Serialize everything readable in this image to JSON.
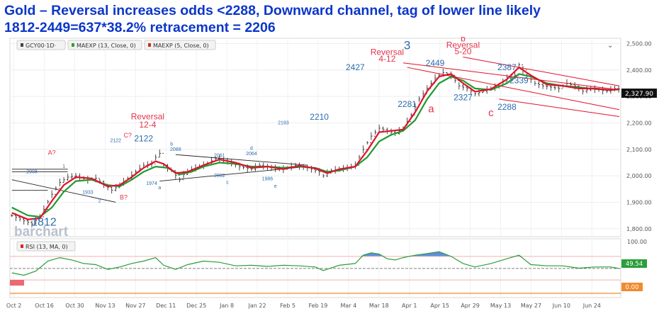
{
  "title_line1": "Gold – Reversal increases odds <2288, Downward channel, tag of lower line likely",
  "title_line2": "1812-2449=637*38.2% retracement = 2206",
  "legend": [
    {
      "label": "GCY00·1D·",
      "color": "#444444"
    },
    {
      "label": "MAEXP (13, Close, 0)",
      "color": "#2ca02c"
    },
    {
      "label": "MAEXP (5, Close, 0)",
      "color": "#d62728"
    }
  ],
  "rsi_legend": "RSI (13, MA, 0)",
  "watermark": "barchart",
  "colors": {
    "ma13": "#1f9a2e",
    "ma5": "#e0112b",
    "price": "#333333",
    "rsi": "#2a9e3a",
    "rsi_fill": "#3a6fd8",
    "channel": "#e0112b",
    "blue_text": "#2b6cb0",
    "red_text": "#e3344c"
  },
  "chart_data": {
    "type": "line",
    "title": "Gold – Reversal increases odds <2288, Downward channel, tag of lower line likely",
    "subtitle": "1812-2449=637*38.2% retracement = 2206",
    "ylim": [
      1770,
      2520
    ],
    "y_ticks": [
      "2,500.00",
      "2,400.00",
      "2,300.00",
      "2,200.00",
      "2,100.00",
      "2,000.00",
      "1,900.00",
      "1,800.00"
    ],
    "y_tick_values": [
      2500,
      2400,
      2300,
      2200,
      2100,
      2000,
      1900,
      1800
    ],
    "x_ticks": [
      "Oct 2",
      "Oct 16",
      "Oct 30",
      "Nov 13",
      "Nov 27",
      "Dec 11",
      "Dec 25",
      "Jan 8",
      "Jan 22",
      "Feb 5",
      "Feb 19",
      "Mar 4",
      "Mar 18",
      "Apr 1",
      "Apr 15",
      "Apr 29",
      "May 13",
      "May 27",
      "Jun 10",
      "Jun 24"
    ],
    "last_price": "2,327.90",
    "close_path": [
      [
        0,
        1850
      ],
      [
        3,
        1830
      ],
      [
        5,
        1818
      ],
      [
        7,
        1845
      ],
      [
        10,
        1930
      ],
      [
        12,
        1975
      ],
      [
        14,
        1995
      ],
      [
        16,
        2000
      ],
      [
        19,
        1985
      ],
      [
        21,
        1990
      ],
      [
        23,
        1968
      ],
      [
        25,
        1945
      ],
      [
        27,
        1965
      ],
      [
        29,
        1990
      ],
      [
        31,
        2015
      ],
      [
        33,
        2040
      ],
      [
        35,
        2045
      ],
      [
        36,
        2070
      ],
      [
        37,
        2085
      ],
      [
        38,
        2040
      ],
      [
        40,
        2020
      ],
      [
        42,
        1985
      ],
      [
        43,
        2005
      ],
      [
        45,
        2025
      ],
      [
        48,
        2040
      ],
      [
        51,
        2065
      ],
      [
        54,
        2055
      ],
      [
        57,
        2035
      ],
      [
        60,
        2025
      ],
      [
        62,
        2040
      ],
      [
        65,
        2030
      ],
      [
        68,
        2025
      ],
      [
        71,
        2040
      ],
      [
        74,
        2030
      ],
      [
        77,
        2015
      ],
      [
        78,
        2000
      ],
      [
        80,
        2020
      ],
      [
        84,
        2030
      ],
      [
        86,
        2040
      ],
      [
        88,
        2100
      ],
      [
        90,
        2150
      ],
      [
        92,
        2180
      ],
      [
        94,
        2170
      ],
      [
        96,
        2160
      ],
      [
        98,
        2180
      ],
      [
        100,
        2230
      ],
      [
        102,
        2290
      ],
      [
        104,
        2330
      ],
      [
        106,
        2370
      ],
      [
        108,
        2390
      ],
      [
        110,
        2380
      ],
      [
        112,
        2340
      ],
      [
        114,
        2330
      ],
      [
        116,
        2310
      ],
      [
        118,
        2320
      ],
      [
        120,
        2330
      ],
      [
        122,
        2340
      ],
      [
        124,
        2370
      ],
      [
        126,
        2380
      ],
      [
        127,
        2420
      ],
      [
        129,
        2380
      ],
      [
        131,
        2350
      ],
      [
        133,
        2340
      ],
      [
        135,
        2335
      ],
      [
        137,
        2330
      ],
      [
        139,
        2350
      ],
      [
        141,
        2340
      ],
      [
        143,
        2320
      ],
      [
        145,
        2330
      ],
      [
        147,
        2325
      ],
      [
        149,
        2320
      ],
      [
        151,
        2330
      ],
      [
        152,
        2327.9
      ]
    ],
    "series": [
      {
        "name": "MAEXP (13, Close, 0)",
        "values": [
          [
            0,
            1880
          ],
          [
            4,
            1850
          ],
          [
            7,
            1845
          ],
          [
            10,
            1880
          ],
          [
            13,
            1940
          ],
          [
            16,
            1980
          ],
          [
            20,
            1985
          ],
          [
            24,
            1965
          ],
          [
            27,
            1960
          ],
          [
            30,
            1985
          ],
          [
            33,
            2015
          ],
          [
            36,
            2035
          ],
          [
            39,
            2030
          ],
          [
            42,
            2005
          ],
          [
            45,
            2015
          ],
          [
            48,
            2035
          ],
          [
            52,
            2050
          ],
          [
            56,
            2045
          ],
          [
            60,
            2035
          ],
          [
            64,
            2035
          ],
          [
            68,
            2030
          ],
          [
            72,
            2035
          ],
          [
            76,
            2030
          ],
          [
            79,
            2015
          ],
          [
            82,
            2020
          ],
          [
            86,
            2035
          ],
          [
            89,
            2070
          ],
          [
            92,
            2130
          ],
          [
            95,
            2155
          ],
          [
            98,
            2170
          ],
          [
            101,
            2210
          ],
          [
            104,
            2290
          ],
          [
            107,
            2350
          ],
          [
            110,
            2375
          ],
          [
            113,
            2360
          ],
          [
            116,
            2330
          ],
          [
            120,
            2325
          ],
          [
            124,
            2350
          ],
          [
            127,
            2385
          ],
          [
            130,
            2375
          ],
          [
            134,
            2350
          ],
          [
            138,
            2340
          ],
          [
            142,
            2335
          ],
          [
            146,
            2328
          ],
          [
            150,
            2325
          ],
          [
            152,
            2326
          ]
        ]
      },
      {
        "name": "MAEXP (5, Close, 0)",
        "values": [
          [
            0,
            1860
          ],
          [
            4,
            1835
          ],
          [
            7,
            1840
          ],
          [
            10,
            1905
          ],
          [
            13,
            1965
          ],
          [
            16,
            1995
          ],
          [
            20,
            1990
          ],
          [
            24,
            1960
          ],
          [
            27,
            1965
          ],
          [
            30,
            1995
          ],
          [
            33,
            2030
          ],
          [
            36,
            2055
          ],
          [
            38,
            2045
          ],
          [
            41,
            2010
          ],
          [
            44,
            2015
          ],
          [
            48,
            2040
          ],
          [
            52,
            2062
          ],
          [
            56,
            2050
          ],
          [
            60,
            2030
          ],
          [
            64,
            2035
          ],
          [
            68,
            2025
          ],
          [
            72,
            2038
          ],
          [
            76,
            2028
          ],
          [
            79,
            2010
          ],
          [
            82,
            2025
          ],
          [
            86,
            2035
          ],
          [
            89,
            2095
          ],
          [
            92,
            2165
          ],
          [
            95,
            2170
          ],
          [
            98,
            2175
          ],
          [
            101,
            2240
          ],
          [
            104,
            2320
          ],
          [
            107,
            2375
          ],
          [
            110,
            2385
          ],
          [
            113,
            2350
          ],
          [
            116,
            2318
          ],
          [
            120,
            2328
          ],
          [
            124,
            2365
          ],
          [
            127,
            2410
          ],
          [
            130,
            2380
          ],
          [
            134,
            2345
          ],
          [
            138,
            2340
          ],
          [
            142,
            2330
          ],
          [
            146,
            2330
          ],
          [
            150,
            2324
          ],
          [
            152,
            2328
          ]
        ]
      }
    ],
    "rsi": {
      "ylim": [
        0,
        100
      ],
      "tick": "100.00",
      "level_line": 49.54,
      "level_label": "49.54",
      "zero_label": "0.00",
      "values": [
        [
          0,
          42
        ],
        [
          3,
          38
        ],
        [
          6,
          45
        ],
        [
          9,
          62
        ],
        [
          12,
          68
        ],
        [
          15,
          64
        ],
        [
          18,
          58
        ],
        [
          21,
          56
        ],
        [
          24,
          48
        ],
        [
          27,
          52
        ],
        [
          30,
          58
        ],
        [
          33,
          62
        ],
        [
          36,
          68
        ],
        [
          38,
          55
        ],
        [
          41,
          48
        ],
        [
          44,
          56
        ],
        [
          48,
          62
        ],
        [
          52,
          60
        ],
        [
          56,
          54
        ],
        [
          60,
          55
        ],
        [
          64,
          53
        ],
        [
          68,
          55
        ],
        [
          72,
          54
        ],
        [
          76,
          52
        ],
        [
          78,
          46
        ],
        [
          82,
          55
        ],
        [
          86,
          58
        ],
        [
          88,
          72
        ],
        [
          90,
          76
        ],
        [
          92,
          74
        ],
        [
          94,
          66
        ],
        [
          96,
          64
        ],
        [
          98,
          68
        ],
        [
          101,
          72
        ],
        [
          104,
          75
        ],
        [
          107,
          78
        ],
        [
          110,
          70
        ],
        [
          113,
          58
        ],
        [
          116,
          52
        ],
        [
          120,
          58
        ],
        [
          124,
          66
        ],
        [
          127,
          72
        ],
        [
          130,
          56
        ],
        [
          134,
          54
        ],
        [
          138,
          54
        ],
        [
          142,
          50
        ],
        [
          146,
          52
        ],
        [
          150,
          52
        ],
        [
          152,
          49.54
        ]
      ]
    },
    "labels_blue": [
      {
        "text": "1812",
        "x": 8,
        "y": 1812
      },
      {
        "text": "2008",
        "x": 5,
        "y": 2010
      },
      {
        "text": "1",
        "x": 13,
        "y": 2030
      },
      {
        "text": "1933",
        "x": 19,
        "y": 1932
      },
      {
        "text": "2",
        "x": 22,
        "y": 1900
      },
      {
        "text": "2122",
        "x": 26,
        "y": 2128
      },
      {
        "text": "2122",
        "x": 33,
        "y": 2130
      },
      {
        "text": "1974",
        "x": 35,
        "y": 1965
      },
      {
        "text": "a",
        "x": 37,
        "y": 1950
      },
      {
        "text": "b",
        "x": 40,
        "y": 2114
      },
      {
        "text": "2088",
        "x": 41,
        "y": 2094
      },
      {
        "text": "2061",
        "x": 52,
        "y": 2072
      },
      {
        "text": "2002",
        "x": 52,
        "y": 1995
      },
      {
        "text": "c",
        "x": 54,
        "y": 1970
      },
      {
        "text": "d",
        "x": 60,
        "y": 2098
      },
      {
        "text": "2064",
        "x": 60,
        "y": 2078
      },
      {
        "text": "1986",
        "x": 64,
        "y": 1983
      },
      {
        "text": "e",
        "x": 66,
        "y": 1955
      },
      {
        "text": "2193",
        "x": 68,
        "y": 2195
      },
      {
        "text": "2210",
        "x": 77,
        "y": 2212
      },
      {
        "text": "2427",
        "x": 86,
        "y": 2400
      },
      {
        "text": "3",
        "x": 99,
        "y": 2478
      },
      {
        "text": "2281",
        "x": 99,
        "y": 2260
      },
      {
        "text": "2449",
        "x": 106,
        "y": 2415
      },
      {
        "text": "2327",
        "x": 113,
        "y": 2285
      },
      {
        "text": "2387",
        "x": 124,
        "y": 2400
      },
      {
        "text": "2339",
        "x": 127,
        "y": 2350
      },
      {
        "text": "2288",
        "x": 124,
        "y": 2250
      }
    ],
    "labels_red": [
      {
        "text": "A?",
        "x": 10,
        "y": 2080
      },
      {
        "text": "B?",
        "x": 28,
        "y": 1910
      },
      {
        "text": "C?",
        "x": 29,
        "y": 2145
      },
      {
        "text": "Reversal",
        "x": 34,
        "y": 2213
      },
      {
        "text": "12-4",
        "x": 34,
        "y": 2183
      },
      {
        "text": "Reversal",
        "x": 94,
        "y": 2457
      },
      {
        "text": "4-12",
        "x": 94,
        "y": 2432
      },
      {
        "text": "a",
        "x": 105,
        "y": 2240
      },
      {
        "text": "b",
        "x": 113,
        "y": 2508
      },
      {
        "text": "Reversal",
        "x": 113,
        "y": 2484
      },
      {
        "text": "5-20",
        "x": 113,
        "y": 2460
      },
      {
        "text": "c",
        "x": 120,
        "y": 2225
      }
    ]
  }
}
